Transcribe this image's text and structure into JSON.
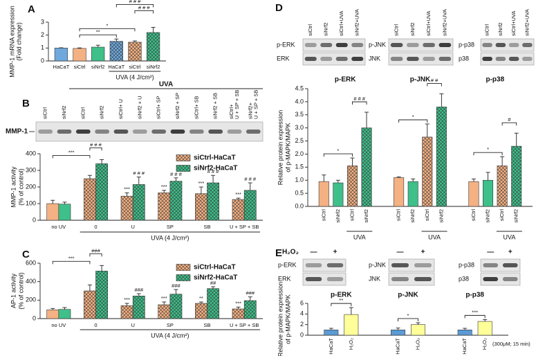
{
  "chart_data": [
    {
      "panel": "A",
      "type": "bar",
      "ylabel": [
        "MMP-1 mRNA expression",
        "(Fold change)"
      ],
      "ylim": [
        0,
        3
      ],
      "yticks": [
        0,
        1,
        2,
        3
      ],
      "colors": [
        "#6fa8dc",
        "#f4b183",
        "#3fbf8a",
        "#6fa8dc",
        "#f4b183",
        "#3fbf8a"
      ],
      "hatched": [
        false,
        false,
        false,
        true,
        true,
        true
      ],
      "groups": [
        {
          "categories": [
            "HaCaT",
            "siCtrl",
            "siNrf2",
            "HaCaT",
            "siCtrl",
            "siNrf2"
          ],
          "values": [
            1.0,
            0.97,
            1.07,
            1.52,
            1.45,
            2.2
          ],
          "errors": [
            0.02,
            0.04,
            0.15,
            0.18,
            0.1,
            0.4
          ],
          "span_label": {
            "text": "UVA (4 J/cm²)",
            "from": 3,
            "to": 5
          },
          "annotations": [
            {
              "text": "**",
              "from": 1,
              "to": 3
            },
            {
              "text": "*",
              "from": 1,
              "to": 4
            },
            {
              "text": "# # #",
              "from": 4,
              "to": 5
            },
            {
              "text": "# # #",
              "from": 3,
              "to": 5
            }
          ]
        }
      ]
    },
    {
      "panel": "B",
      "type": "grouped_bar",
      "blot": {
        "header": "UVA",
        "rows": [
          "MMP-1"
        ],
        "lanes": [
          "siCtrl",
          "siNrf2",
          "siCtrl",
          "siNrf2",
          "siCtrl+ U",
          "siNrf2 + U",
          "siCtrl+ SP",
          "siNrf2 + SP",
          "siCtrl+ SB",
          "siNrf2 + SB",
          [
            "siCtrl+",
            "U + SP + SB"
          ],
          [
            "siNrf2+",
            "U + SP + SB"
          ]
        ]
      },
      "ylabel": [
        "MMP-1 activity",
        "(% of control)"
      ],
      "ylim": [
        0,
        400
      ],
      "yticks": [
        0,
        100,
        200,
        300,
        400
      ],
      "categories": [
        "no UV",
        "0",
        "U",
        "SP",
        "SB",
        "U + SP + SB"
      ],
      "hatched": [
        false,
        true,
        true,
        true,
        true,
        true
      ],
      "legend": "upper right",
      "series": [
        {
          "name": "siCtrl-HaCaT",
          "color": "#f4b183",
          "values": [
            100,
            250,
            145,
            165,
            160,
            125
          ],
          "errors": [
            20,
            20,
            20,
            15,
            40,
            8
          ]
        },
        {
          "name": "siNrf2-HaCaT",
          "color": "#3fbf8a",
          "values": [
            97,
            340,
            215,
            235,
            225,
            180
          ],
          "errors": [
            12,
            25,
            45,
            20,
            45,
            45
          ]
        }
      ],
      "span_label": {
        "text": "UVA (4 J/cm²)",
        "from": 1,
        "to": 5
      },
      "annotations": [
        {
          "text": "***",
          "from": [
            0,
            0
          ],
          "to": [
            0,
            1
          ]
        },
        {
          "text": "# # #",
          "from": [
            0,
            1
          ],
          "to": [
            1,
            1
          ]
        },
        {
          "text": "***",
          "at": [
            0,
            2
          ]
        },
        {
          "text": "# # #",
          "at": [
            1,
            2
          ]
        },
        {
          "text": "***",
          "at": [
            0,
            3
          ]
        },
        {
          "text": "# # #",
          "at": [
            1,
            3
          ]
        },
        {
          "text": "***",
          "at": [
            0,
            4
          ]
        },
        {
          "text": "# # #",
          "at": [
            1,
            4
          ]
        },
        {
          "text": "***",
          "at": [
            0,
            5
          ]
        },
        {
          "text": "# # #",
          "at": [
            1,
            5
          ]
        }
      ]
    },
    {
      "panel": "C",
      "type": "grouped_bar",
      "ylabel": [
        "AP-1 activity",
        "(% of control)"
      ],
      "ylim": [
        0,
        600
      ],
      "yticks": [
        0,
        200,
        400,
        600
      ],
      "categories": [
        "no UV",
        "0",
        "U",
        "SP",
        "SB",
        "U + SP + SB"
      ],
      "hatched": [
        false,
        true,
        true,
        true,
        true,
        true
      ],
      "legend": "upper right",
      "series": [
        {
          "name": "siCtrl-HaCaT",
          "color": "#f4b183",
          "values": [
            95,
            300,
            140,
            150,
            165,
            105
          ],
          "errors": [
            15,
            65,
            25,
            30,
            15,
            20
          ]
        },
        {
          "name": "siNrf2-HaCaT",
          "color": "#3fbf8a",
          "values": [
            100,
            515,
            245,
            265,
            325,
            195
          ],
          "errors": [
            20,
            60,
            25,
            50,
            20,
            40
          ]
        }
      ],
      "span_label": {
        "text": "UVA (4 J/cm²)",
        "from": 1,
        "to": 5
      },
      "annotations": [
        {
          "text": "***",
          "from": [
            0,
            0
          ],
          "to": [
            0,
            1
          ]
        },
        {
          "text": "###",
          "from": [
            0,
            1
          ],
          "to": [
            1,
            1
          ]
        },
        {
          "text": "***",
          "at": [
            0,
            2
          ]
        },
        {
          "text": "###",
          "at": [
            1,
            2
          ]
        },
        {
          "text": "***",
          "at": [
            0,
            3
          ]
        },
        {
          "text": "###",
          "at": [
            1,
            3
          ]
        },
        {
          "text": "**",
          "at": [
            0,
            4
          ]
        },
        {
          "text": "##",
          "at": [
            1,
            4
          ]
        },
        {
          "text": "***",
          "at": [
            0,
            5
          ]
        },
        {
          "text": "###",
          "at": [
            1,
            5
          ]
        }
      ]
    },
    {
      "panel": "D",
      "type": "bar",
      "blots": [
        {
          "rows": [
            "p-ERK",
            "ERK"
          ],
          "lanes": [
            "siCtrl",
            "siNrf2",
            "siCtrl+UVA",
            "siNrf2+UVA"
          ]
        },
        {
          "rows": [
            "p-JNK",
            "JNK"
          ],
          "lanes": [
            "siCtrl",
            "siNrf2",
            "siCtrl+UVA",
            "siNrf2+UVA"
          ]
        },
        {
          "rows": [
            "p-p38",
            "p38"
          ],
          "lanes": [
            "siCtrl",
            "siNrf2",
            "siCtrl+UVA",
            "siNrf2+UVA"
          ]
        }
      ],
      "ylabel": [
        "Relative protein expression",
        "of p-MAPK/MAPK"
      ],
      "ylim": [
        0,
        4.5
      ],
      "yticks": [
        {
          "value": 0,
          "label": "0.0"
        },
        0.5,
        {
          "value": 1,
          "label": "1.0"
        },
        1.5,
        {
          "value": 2,
          "label": "2.0"
        },
        2.5,
        {
          "value": 3,
          "label": "3.0"
        },
        3.5,
        {
          "value": 4,
          "label": "4.0"
        },
        4.5
      ],
      "colors": [
        "#f4b183",
        "#3fbf8a",
        "#f4b183",
        "#3fbf8a"
      ],
      "hatched": [
        false,
        false,
        true,
        true
      ],
      "groups": [
        {
          "title": "p-ERK",
          "categories": [
            "siCtrl",
            "siNrf2",
            "siCtrl",
            "siNrf2"
          ],
          "values": [
            0.95,
            0.9,
            1.55,
            3.0
          ],
          "errors": [
            0.25,
            0.1,
            0.3,
            0.6
          ],
          "span_label": {
            "text": "UVA",
            "from": 2,
            "to": 3
          },
          "annotations": [
            {
              "text": "*",
              "from": 0,
              "to": 2
            },
            {
              "text": "# # #",
              "from": 2,
              "to": 3
            }
          ]
        },
        {
          "title": "p-JNK",
          "categories": [
            "siCtrl",
            "siNrf2",
            "siCtrl",
            "siNrf2"
          ],
          "values": [
            1.1,
            0.95,
            2.65,
            3.8
          ],
          "errors": [
            0.03,
            0.1,
            0.5,
            0.5
          ],
          "span_label": {
            "text": "UVA",
            "from": 2,
            "to": 3
          },
          "annotations": [
            {
              "text": "*",
              "from": 0,
              "to": 2
            },
            {
              "text": "# #",
              "from": 2,
              "to": 3
            }
          ]
        },
        {
          "title": "p-p38",
          "categories": [
            "siCtrl",
            "siNrf2",
            "siCtrl",
            "siNrf2"
          ],
          "values": [
            0.95,
            1.0,
            1.55,
            2.3
          ],
          "errors": [
            0.1,
            0.3,
            0.35,
            0.5
          ],
          "span_label": {
            "text": "UVA",
            "from": 2,
            "to": 3
          },
          "annotations": [
            {
              "text": "*",
              "from": 0,
              "to": 2
            },
            {
              "text": "#",
              "from": 2,
              "to": 3
            }
          ]
        }
      ]
    },
    {
      "panel": "E",
      "type": "bar",
      "treatment_label": "H₂O₂",
      "blots": [
        {
          "rows": [
            "p-ERK",
            "ERK"
          ],
          "lanes": [
            "—",
            "+"
          ]
        },
        {
          "rows": [
            "p-JNK",
            "JNK"
          ],
          "lanes": [
            "—",
            "+"
          ]
        },
        {
          "rows": [
            "p-p38",
            "p38"
          ],
          "lanes": [
            "—",
            "+"
          ]
        }
      ],
      "ylabel": [
        "Relative protein expression",
        "of p-MAPK/MAPK"
      ],
      "ylim": [
        0,
        6
      ],
      "yticks": [
        0,
        2,
        4,
        6
      ],
      "colors": [
        "#5b9bd5",
        "#ffff99"
      ],
      "groups": [
        {
          "title": "p-ERK",
          "categories": [
            "HaCaT",
            "H₂O₂"
          ],
          "values": [
            1.0,
            3.9
          ],
          "errors": [
            0.3,
            1.3
          ],
          "annotations": [
            {
              "text": "**",
              "from": 0,
              "to": 1
            }
          ]
        },
        {
          "title": "p-JNK",
          "categories": [
            "HaCaT",
            "H₂O₂"
          ],
          "values": [
            1.0,
            2.0
          ],
          "errors": [
            0.35,
            0.35
          ],
          "annotations": [
            {
              "text": "*",
              "from": 0,
              "to": 1
            }
          ]
        },
        {
          "title": "p-p38",
          "categories": [
            "HaCaT",
            "H₂O₂"
          ],
          "values": [
            1.0,
            2.6
          ],
          "errors": [
            0.3,
            0.35
          ],
          "annotations": [
            {
              "text": "***",
              "from": 0,
              "to": 1
            }
          ]
        }
      ],
      "note": "(300μM; 15 min)"
    }
  ]
}
